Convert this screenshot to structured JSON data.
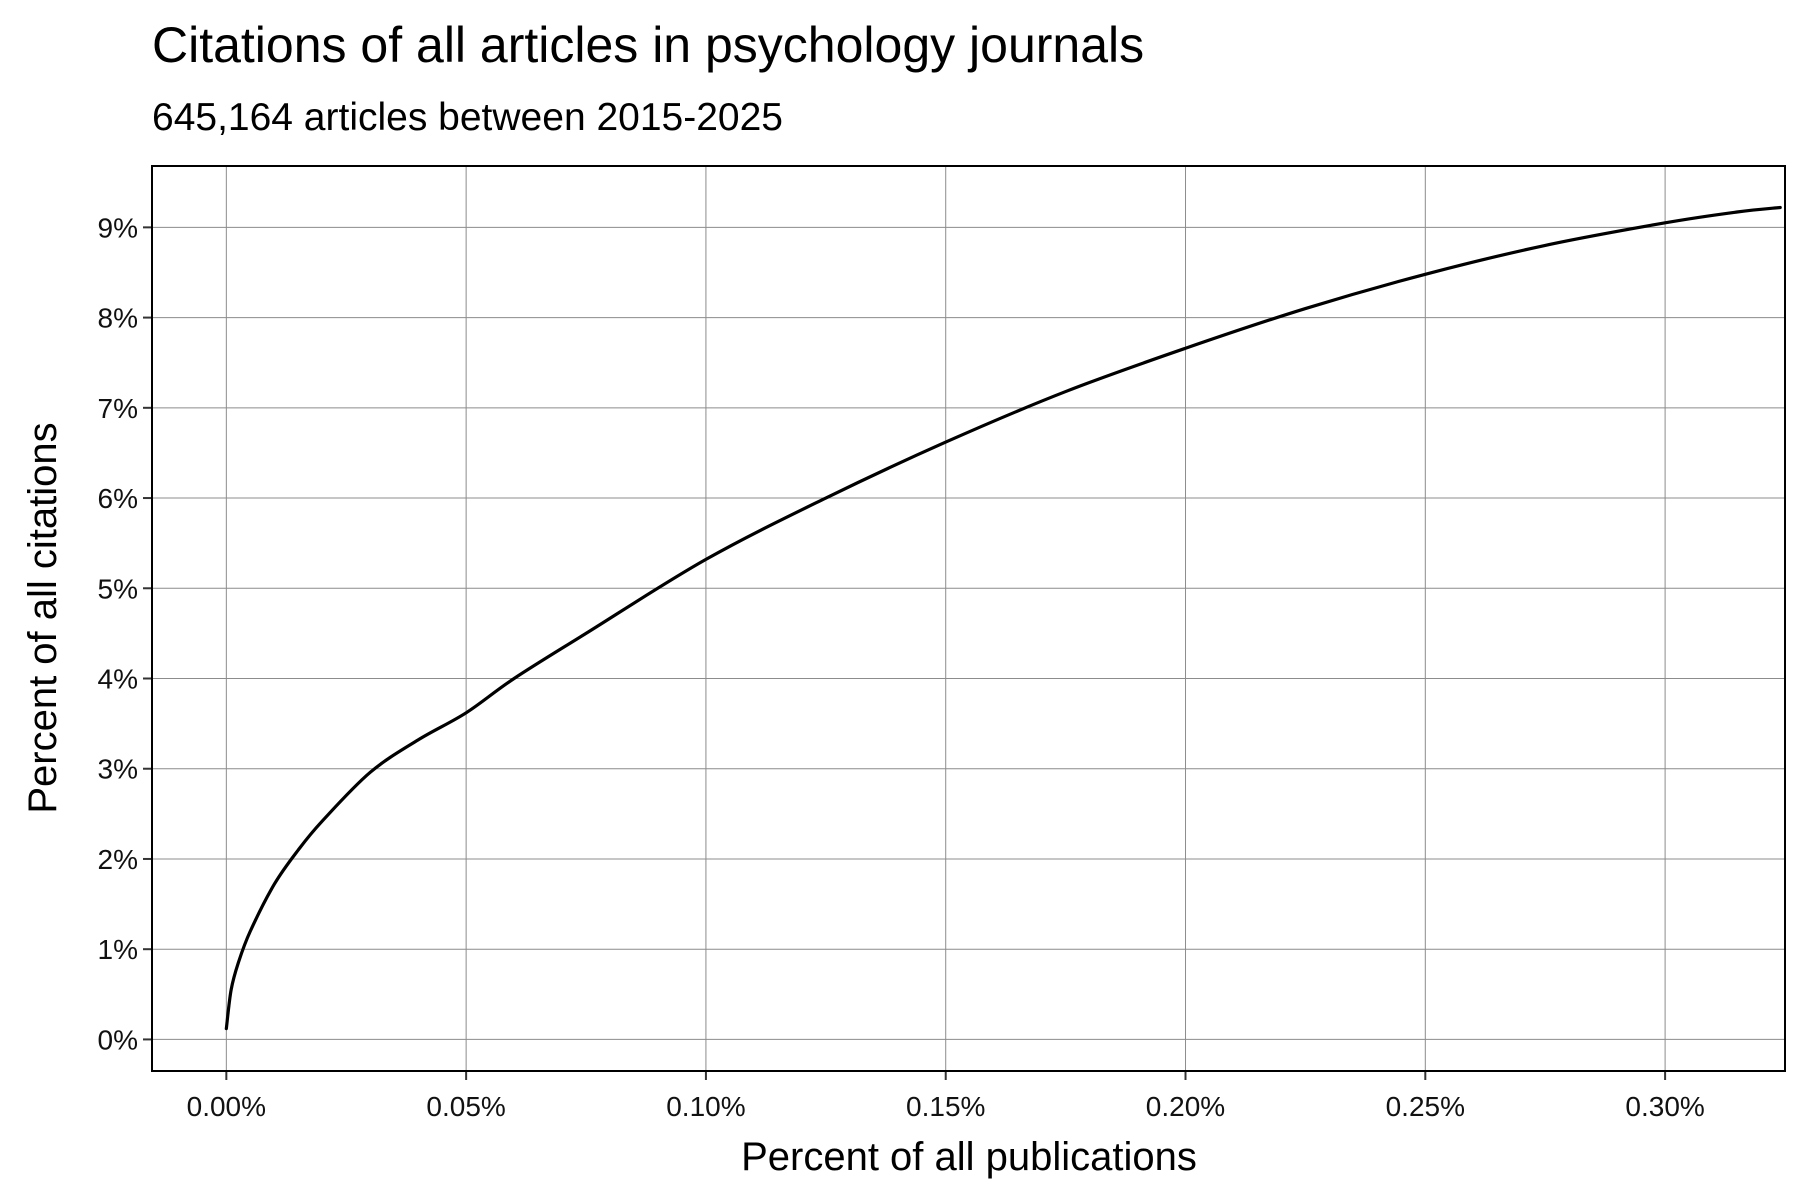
{
  "chart_data": {
    "type": "line",
    "title": "Citations of all articles in psychology journals",
    "subtitle": "645,164 articles between 2015-2025",
    "xlabel": "Percent of all publications",
    "ylabel": "Percent of all citations",
    "xlim": [
      -0.0155,
      0.325
    ],
    "ylim": [
      -0.35,
      9.68
    ],
    "x_ticks": [
      0.0,
      0.05,
      0.1,
      0.15,
      0.2,
      0.25,
      0.3
    ],
    "x_tick_labels": [
      "0.00%",
      "0.05%",
      "0.10%",
      "0.15%",
      "0.20%",
      "0.25%",
      "0.30%"
    ],
    "y_ticks": [
      0,
      1,
      2,
      3,
      4,
      5,
      6,
      7,
      8,
      9
    ],
    "y_tick_labels": [
      "0%",
      "1%",
      "2%",
      "3%",
      "4%",
      "5%",
      "6%",
      "7%",
      "8%",
      "9%"
    ],
    "grid": true,
    "legend": "none",
    "line_color": "#000000",
    "grid_color": "#8c8c8c",
    "series": [
      {
        "x": [
          0.0,
          0.001,
          0.0025,
          0.005,
          0.01,
          0.015,
          0.02,
          0.03,
          0.04,
          0.05,
          0.06,
          0.075,
          0.1,
          0.125,
          0.15,
          0.175,
          0.2,
          0.225,
          0.25,
          0.275,
          0.3,
          0.315,
          0.324
        ],
        "y": [
          0.12,
          0.55,
          0.85,
          1.2,
          1.72,
          2.1,
          2.42,
          2.96,
          3.32,
          3.62,
          4.0,
          4.5,
          5.32,
          6.0,
          6.62,
          7.18,
          7.66,
          8.1,
          8.48,
          8.8,
          9.05,
          9.17,
          9.22
        ]
      }
    ]
  }
}
